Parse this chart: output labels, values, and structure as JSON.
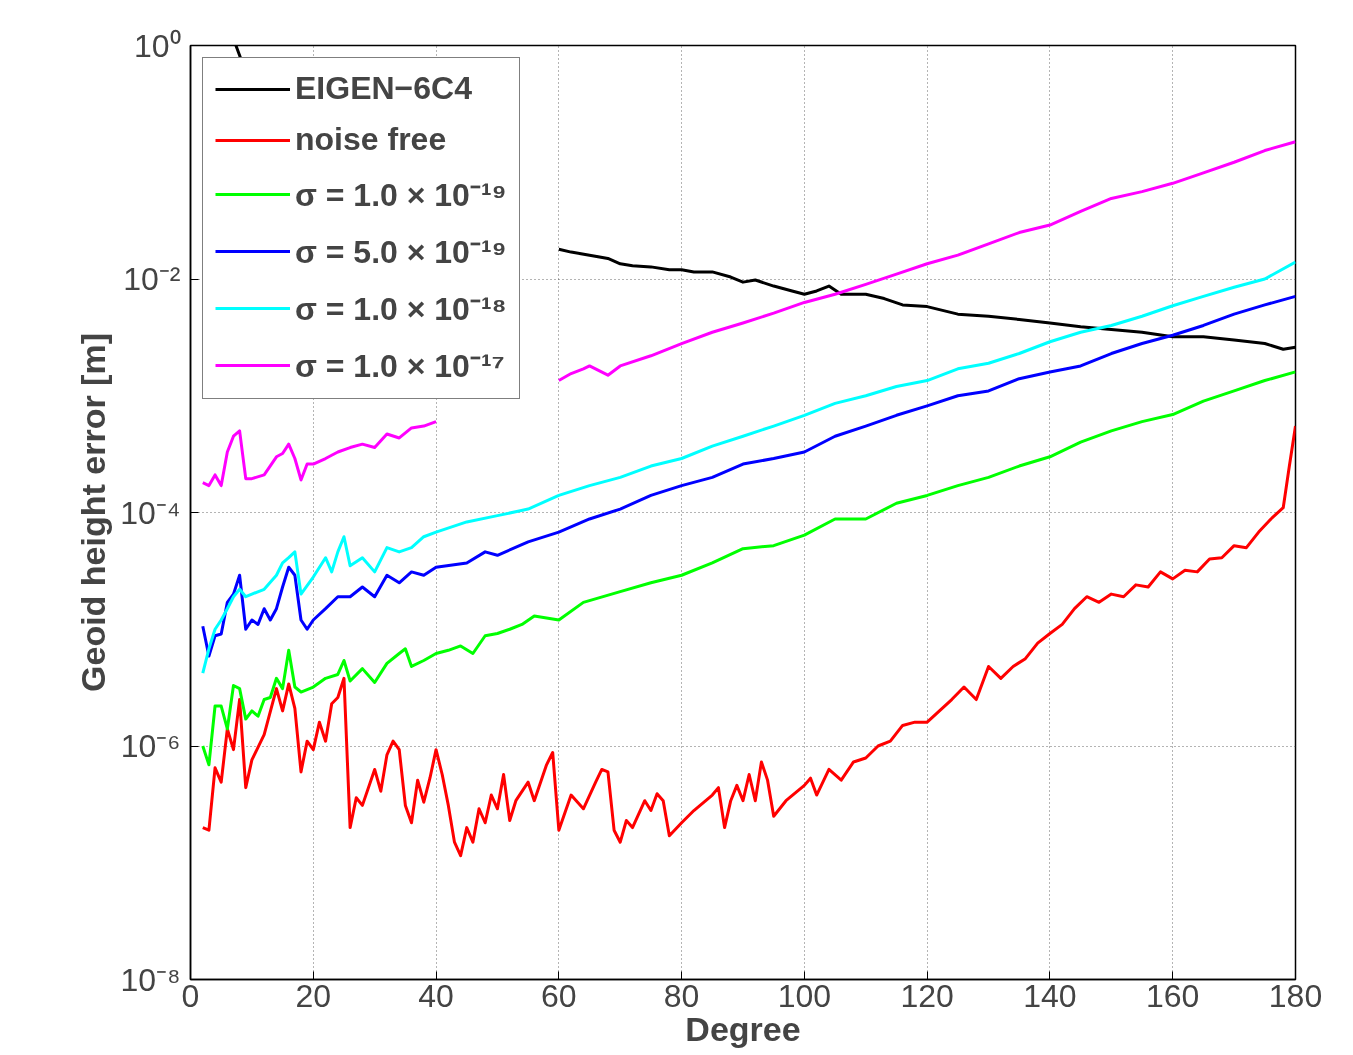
{
  "chart_data": {
    "type": "line",
    "xlabel": "Degree",
    "ylabel": "Geoid height error [m]",
    "log": "y",
    "grid": true,
    "legend": "top left",
    "line_style": "solid",
    "marker": "none",
    "xlim": [
      0,
      180
    ],
    "xticks": [
      0,
      20,
      40,
      60,
      80,
      100,
      120,
      140,
      160,
      180
    ],
    "ylim": [
      1e-08,
      1
    ],
    "yticks": [
      {
        "value": 1e-08,
        "label": "10⁻⁸"
      },
      {
        "value": 1e-06,
        "label": "10⁻⁶"
      },
      {
        "value": 0.0001,
        "label": "10⁻⁴"
      },
      {
        "value": 0.01,
        "label": "10⁻²"
      },
      {
        "value": 1,
        "label": "10⁰"
      }
    ],
    "series": [
      {
        "name": "EIGEN−6C4",
        "color": "#000000",
        "x": [
          7.4,
          8.2,
          9,
          60,
          62,
          65,
          68,
          70,
          72,
          75,
          78,
          80,
          82,
          85,
          88,
          90,
          92,
          95,
          98,
          100,
          102,
          104,
          106,
          110,
          113,
          116,
          120,
          125,
          130,
          135,
          140,
          145,
          150,
          155,
          160,
          165,
          170,
          175,
          178,
          180
        ],
        "values": [
          1.0,
          0.77,
          null,
          0.018,
          0.017,
          0.016,
          0.015,
          0.0135,
          0.013,
          0.0127,
          0.012,
          0.012,
          0.0115,
          0.0115,
          0.0104,
          0.0094,
          0.0098,
          0.0087,
          0.0079,
          0.0074,
          0.0079,
          0.0087,
          0.0074,
          0.0074,
          0.0068,
          0.006,
          0.0058,
          0.005,
          0.0048,
          0.0045,
          0.0042,
          0.0039,
          0.0037,
          0.0035,
          0.0032,
          0.0032,
          0.003,
          0.0028,
          0.0025,
          0.0026
        ]
      },
      {
        "name": "noise free",
        "color": "#ff0000",
        "x": [
          2,
          3,
          4,
          5,
          6,
          7,
          8,
          9,
          10,
          12,
          14,
          15,
          16,
          17,
          18,
          19,
          20,
          21,
          22,
          23,
          24,
          25,
          26,
          27,
          28,
          30,
          31,
          32,
          33,
          34,
          35,
          36,
          37,
          38,
          39,
          40,
          41,
          42,
          43,
          44,
          45,
          46,
          47,
          48,
          49,
          50,
          51,
          52,
          53,
          55,
          56,
          58,
          59,
          60,
          62,
          64,
          66,
          67,
          68,
          69,
          70,
          71,
          72,
          74,
          75,
          76,
          77,
          78,
          80,
          82,
          85,
          86,
          87,
          88,
          89,
          90,
          91,
          92,
          93,
          94,
          95,
          97,
          100,
          101,
          102,
          104,
          106,
          108,
          110,
          112,
          114,
          116,
          118,
          120,
          122,
          124,
          126,
          128,
          130,
          132,
          134,
          136,
          138,
          140,
          142,
          144,
          146,
          148,
          150,
          152,
          154,
          156,
          158,
          160,
          162,
          164,
          166,
          168,
          170,
          172,
          174,
          176,
          178,
          179,
          180
        ],
        "values": [
          2e-07,
          1.9e-07,
          6.5e-07,
          4.9e-07,
          1.4e-06,
          9.3e-07,
          2.5e-06,
          4.4e-07,
          7.6e-07,
          1.25e-06,
          3.1e-06,
          2e-06,
          3.4e-06,
          2.1e-06,
          6e-07,
          1.1e-06,
          9.3e-07,
          1.6e-06,
          1.1e-06,
          2.3e-06,
          2.6e-06,
          3.8e-06,
          2e-07,
          3.6e-07,
          3.1e-07,
          6.3e-07,
          4.1e-07,
          8.4e-07,
          1.1e-06,
          9.3e-07,
          3.1e-07,
          2.2e-07,
          5.1e-07,
          3.3e-07,
          5.3e-07,
          9.3e-07,
          5.7e-07,
          3.1e-07,
          1.5e-07,
          1.15e-07,
          2e-07,
          1.5e-07,
          2.9e-07,
          2.2e-07,
          3.8e-07,
          2.9e-07,
          5.7e-07,
          2.3e-07,
          3.4e-07,
          4.9e-07,
          3.4e-07,
          6.9e-07,
          8.8e-07,
          1.9e-07,
          3.8e-07,
          2.9e-07,
          4.9e-07,
          6.3e-07,
          6e-07,
          1.9e-07,
          1.5e-07,
          2.3e-07,
          2e-07,
          3.4e-07,
          2.8e-07,
          3.9e-07,
          3.4e-07,
          1.7e-07,
          2.2e-07,
          2.8e-07,
          3.8e-07,
          4.4e-07,
          2e-07,
          3.4e-07,
          4.6e-07,
          3.4e-07,
          5.7e-07,
          3.4e-07,
          7.3e-07,
          5.1e-07,
          2.5e-07,
          3.4e-07,
          4.6e-07,
          5.3e-07,
          3.8e-07,
          6.3e-07,
          5.1e-07,
          7.3e-07,
          7.9e-07,
          1e-06,
          1.1e-06,
          1.5e-06,
          1.6e-06,
          1.6e-06,
          2e-06,
          2.5e-06,
          3.2e-06,
          2.5e-06,
          4.8e-06,
          3.8e-06,
          4.8e-06,
          5.6e-06,
          7.6e-06,
          9.2e-06,
          1.1e-05,
          1.5e-05,
          1.9e-05,
          1.7e-05,
          2e-05,
          1.9e-05,
          2.4e-05,
          2.3e-05,
          3.1e-05,
          2.7e-05,
          3.2e-05,
          3.1e-05,
          4e-05,
          4.1e-05,
          5.2e-05,
          5e-05,
          6.8e-05,
          8.8e-05,
          0.00011,
          0.00025,
          0.00055
        ]
      },
      {
        "name": "σ = 1.0 × 10⁻¹⁹",
        "color": "#00ff00",
        "x": [
          2,
          3,
          4,
          5,
          6,
          7,
          8,
          9,
          10,
          11,
          12,
          13,
          14,
          15,
          16,
          17,
          18,
          20,
          22,
          24,
          25,
          26,
          28,
          30,
          32,
          34,
          35,
          36,
          38,
          40,
          42,
          44,
          46,
          48,
          50,
          52,
          54,
          56,
          60,
          64,
          70,
          75,
          80,
          85,
          90,
          95,
          100,
          105,
          110,
          115,
          120,
          125,
          130,
          135,
          140,
          145,
          150,
          155,
          160,
          165,
          170,
          175,
          180
        ],
        "values": [
          1e-06,
          6.9e-07,
          2.2e-06,
          2.2e-06,
          1.4e-06,
          3.3e-06,
          3.1e-06,
          1.7e-06,
          2e-06,
          1.8e-06,
          2.5e-06,
          2.6e-06,
          3.8e-06,
          3.1e-06,
          6.6e-06,
          3.2e-06,
          2.9e-06,
          3.2e-06,
          3.8e-06,
          4.1e-06,
          5.4e-06,
          3.6e-06,
          4.6e-06,
          3.5e-06,
          5.1e-06,
          6.2e-06,
          6.8e-06,
          4.8e-06,
          5.4e-06,
          6.2e-06,
          6.6e-06,
          7.2e-06,
          6.2e-06,
          8.8e-06,
          9.2e-06,
          1e-05,
          1.1e-05,
          1.3e-05,
          1.2e-05,
          1.7e-05,
          2.1e-05,
          2.5e-05,
          2.9e-05,
          3.7e-05,
          4.9e-05,
          5.2e-05,
          6.4e-05,
          8.8e-05,
          8.8e-05,
          0.00012,
          0.00014,
          0.00017,
          0.0002,
          0.00025,
          0.0003,
          0.0004,
          0.0005,
          0.0006,
          0.00069,
          0.0009,
          0.0011,
          0.00135,
          0.0016
        ]
      },
      {
        "name": "σ = 5.0 × 10⁻¹⁹",
        "color": "#0000ff",
        "x": [
          2,
          3,
          4,
          5,
          6,
          7,
          8,
          9,
          10,
          11,
          12,
          13,
          14,
          15,
          16,
          17,
          18,
          19,
          20,
          22,
          24,
          26,
          28,
          30,
          32,
          34,
          36,
          38,
          40,
          45,
          48,
          50,
          55,
          60,
          65,
          70,
          75,
          80,
          85,
          90,
          95,
          100,
          105,
          110,
          115,
          120,
          125,
          130,
          135,
          140,
          145,
          150,
          155,
          160,
          165,
          170,
          175,
          180
        ],
        "values": [
          1.06e-05,
          5.9e-06,
          8.8e-06,
          9.1e-06,
          1.7e-05,
          2e-05,
          2.9e-05,
          1e-05,
          1.2e-05,
          1.1e-05,
          1.5e-05,
          1.2e-05,
          1.5e-05,
          2.3e-05,
          3.4e-05,
          2.9e-05,
          1.2e-05,
          1e-05,
          1.2e-05,
          1.5e-05,
          1.9e-05,
          1.9e-05,
          2.3e-05,
          1.9e-05,
          2.9e-05,
          2.5e-05,
          3.1e-05,
          2.9e-05,
          3.4e-05,
          3.7e-05,
          4.6e-05,
          4.3e-05,
          5.6e-05,
          6.8e-05,
          8.8e-05,
          0.000107,
          0.00014,
          0.00017,
          0.0002,
          0.00026,
          0.00029,
          0.00033,
          0.00045,
          0.00055,
          0.00068,
          0.00082,
          0.001,
          0.0011,
          0.0014,
          0.0016,
          0.0018,
          0.0023,
          0.0028,
          0.0033,
          0.004,
          0.005,
          0.006,
          0.0071
        ]
      },
      {
        "name": "σ = 1.0 × 10⁻¹⁸",
        "color": "#00ffff",
        "x": [
          2,
          3,
          4,
          5,
          6,
          7,
          8,
          9,
          10,
          12,
          14,
          15,
          16,
          17,
          18,
          20,
          22,
          23,
          24,
          25,
          26,
          28,
          30,
          32,
          34,
          36,
          38,
          40,
          45,
          50,
          55,
          60,
          65,
          70,
          75,
          80,
          85,
          90,
          95,
          100,
          105,
          110,
          115,
          120,
          125,
          130,
          135,
          140,
          145,
          150,
          155,
          160,
          165,
          170,
          175,
          180
        ],
        "values": [
          4.2e-06,
          6.8e-06,
          1e-05,
          1.2e-05,
          1.5e-05,
          1.9e-05,
          2.2e-05,
          1.9e-05,
          2e-05,
          2.2e-05,
          2.9e-05,
          3.7e-05,
          4.1e-05,
          4.6e-05,
          2e-05,
          2.8e-05,
          4.1e-05,
          3.1e-05,
          4.6e-05,
          6.2e-05,
          3.5e-05,
          4.1e-05,
          3.1e-05,
          5e-05,
          4.6e-05,
          5e-05,
          6.2e-05,
          6.8e-05,
          8.3e-05,
          9.4e-05,
          0.000107,
          0.00014,
          0.00017,
          0.0002,
          0.00025,
          0.00029,
          0.00037,
          0.00045,
          0.00055,
          0.00068,
          0.00086,
          0.001,
          0.0012,
          0.00135,
          0.0017,
          0.0019,
          0.0023,
          0.0029,
          0.0035,
          0.004,
          0.0048,
          0.0059,
          0.0071,
          0.0085,
          0.01,
          0.014
        ]
      },
      {
        "name": "σ = 1.0 × 10⁻¹⁷",
        "color": "#ff00ff",
        "x": [
          2,
          3,
          4,
          5,
          6,
          7,
          8,
          9,
          10,
          12,
          14,
          15,
          16,
          17,
          18,
          19,
          20,
          22,
          24,
          26,
          28,
          30,
          32,
          34,
          36,
          38,
          40,
          41,
          60,
          62,
          64,
          65,
          68,
          70,
          75,
          80,
          85,
          90,
          95,
          100,
          105,
          110,
          115,
          120,
          125,
          130,
          135,
          140,
          145,
          150,
          155,
          160,
          165,
          170,
          175,
          180
        ],
        "values": [
          0.00018,
          0.00017,
          0.00021,
          0.00017,
          0.00033,
          0.00045,
          0.0005,
          0.000195,
          0.000195,
          0.00021,
          0.0003,
          0.00032,
          0.000385,
          0.00029,
          0.00019,
          0.00026,
          0.00026,
          0.00029,
          0.00033,
          0.00036,
          0.000385,
          0.00036,
          0.00047,
          0.000435,
          0.00053,
          0.00055,
          0.0006,
          null,
          0.00135,
          0.00155,
          0.0017,
          0.0018,
          0.0015,
          0.0018,
          0.0022,
          0.0028,
          0.0035,
          0.0042,
          0.0051,
          0.0063,
          0.0074,
          0.009,
          0.011,
          0.0135,
          0.016,
          0.02,
          0.025,
          0.029,
          0.038,
          0.049,
          0.056,
          0.066,
          0.081,
          0.1,
          0.126,
          0.15
        ]
      }
    ]
  }
}
